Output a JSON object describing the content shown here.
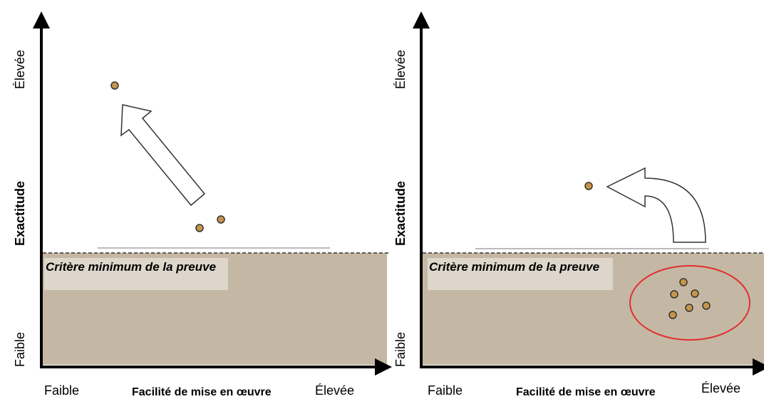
{
  "panels": [
    {
      "y_high": "Élevée",
      "y_title": "Exactitude",
      "y_low": "Faible",
      "x_low": "Faible",
      "x_title": "Facilité de mise en œuvre",
      "x_high": "Élevée",
      "threshold": "Critère minimum de la preuve"
    },
    {
      "y_high": "Élevée",
      "y_title": "Exactitude",
      "y_low": "Faible",
      "x_low": "Faible",
      "x_title": "Facilité de mise en œuvre",
      "x_high": "Élevée",
      "threshold": "Critère minimum de la preuve"
    }
  ]
}
